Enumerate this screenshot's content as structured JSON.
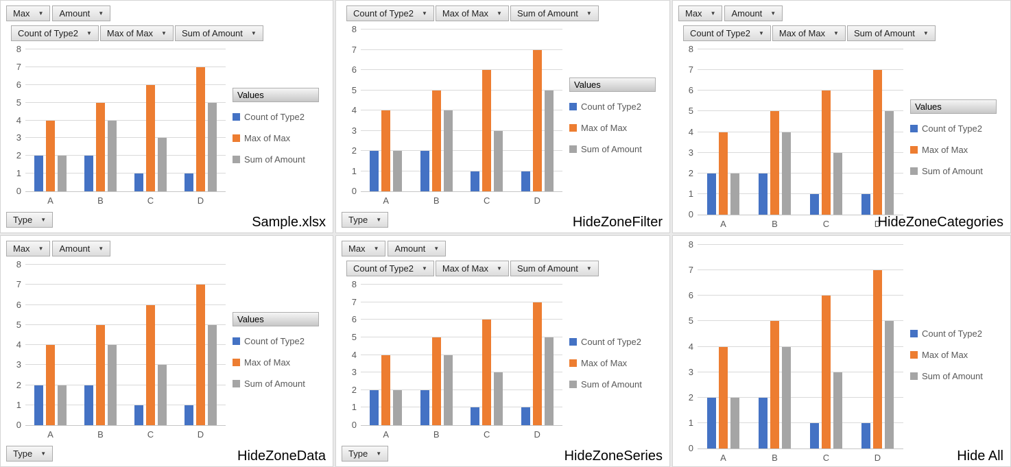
{
  "colors": {
    "series_blue": "#4472C4",
    "series_orange": "#ED7D31",
    "series_gray": "#A5A5A5",
    "gridline": "#D9D9D9",
    "axis_text": "#595959"
  },
  "field_buttons": {
    "filter_buttons": [
      "Max",
      "Amount"
    ],
    "data_buttons": [
      "Count of Type2",
      "Max of Max",
      "Sum of Amount"
    ],
    "values_header": "Values",
    "category_button": "Type"
  },
  "chart_data": {
    "type": "bar",
    "categories": [
      "A",
      "B",
      "C",
      "D"
    ],
    "series": [
      {
        "name": "Count of Type2",
        "color": "#4472C4",
        "values": [
          2,
          2,
          1,
          1
        ]
      },
      {
        "name": "Max of Max",
        "color": "#ED7D31",
        "values": [
          4,
          5,
          6,
          7
        ]
      },
      {
        "name": "Sum of Amount",
        "color": "#A5A5A5",
        "values": [
          2,
          4,
          3,
          5
        ]
      }
    ],
    "ylim": [
      0,
      8
    ],
    "ytick_step": 1,
    "grid": true,
    "legend_position": "right"
  },
  "panels": [
    {
      "title": "Sample.xlsx",
      "show_filter_buttons": true,
      "show_data_buttons": true,
      "show_values_header": true,
      "show_category_button": true
    },
    {
      "title": "HideZoneFilter",
      "show_filter_buttons": false,
      "show_data_buttons": true,
      "show_values_header": true,
      "show_category_button": true
    },
    {
      "title": "HideZoneCategories",
      "show_filter_buttons": true,
      "show_data_buttons": true,
      "show_values_header": true,
      "show_category_button": false
    },
    {
      "title": "HideZoneData",
      "show_filter_buttons": true,
      "show_data_buttons": false,
      "show_values_header": true,
      "show_category_button": true
    },
    {
      "title": "HideZoneSeries",
      "show_filter_buttons": true,
      "show_data_buttons": true,
      "show_values_header": false,
      "show_category_button": true
    },
    {
      "title": "Hide All",
      "show_filter_buttons": false,
      "show_data_buttons": false,
      "show_values_header": false,
      "show_category_button": false
    }
  ]
}
